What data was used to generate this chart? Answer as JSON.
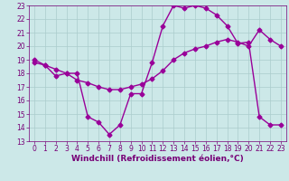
{
  "line1_x": [
    0,
    1,
    2,
    3,
    4,
    5,
    6,
    7,
    8,
    9,
    10,
    11,
    12,
    13,
    14,
    15,
    16,
    17,
    18,
    19,
    20,
    21,
    22,
    23
  ],
  "line1_y": [
    19,
    18.6,
    17.8,
    18.0,
    18.0,
    14.8,
    14.4,
    13.5,
    14.2,
    16.5,
    16.5,
    18.8,
    21.5,
    23.0,
    22.8,
    23.0,
    22.8,
    22.3,
    21.5,
    20.2,
    20.3,
    14.8,
    14.2,
    14.2
  ],
  "line2_x": [
    0,
    1,
    2,
    3,
    4,
    5,
    6,
    7,
    8,
    9,
    10,
    11,
    12,
    13,
    14,
    15,
    16,
    17,
    18,
    19,
    20,
    21,
    22,
    23
  ],
  "line2_y": [
    18.8,
    18.6,
    18.3,
    18.0,
    17.5,
    17.3,
    17.0,
    16.8,
    16.8,
    17.0,
    17.2,
    17.6,
    18.2,
    19.0,
    19.5,
    19.8,
    20.0,
    20.3,
    20.5,
    20.3,
    20.0,
    21.2,
    20.5,
    20.0
  ],
  "line_color": "#990099",
  "bg_color": "#cce8e8",
  "xlabel": "Windchill (Refroidissement éolien,°C)",
  "ylim": [
    13,
    23
  ],
  "xlim": [
    -0.5,
    23.5
  ],
  "yticks": [
    13,
    14,
    15,
    16,
    17,
    18,
    19,
    20,
    21,
    22,
    23
  ],
  "xticks": [
    0,
    1,
    2,
    3,
    4,
    5,
    6,
    7,
    8,
    9,
    10,
    11,
    12,
    13,
    14,
    15,
    16,
    17,
    18,
    19,
    20,
    21,
    22,
    23
  ],
  "marker": "D",
  "markersize": 2.5,
  "linewidth": 1.0,
  "xlabel_fontsize": 6.5,
  "tick_fontsize": 5.5,
  "grid_color": "#aacccc",
  "label_color": "#770077"
}
